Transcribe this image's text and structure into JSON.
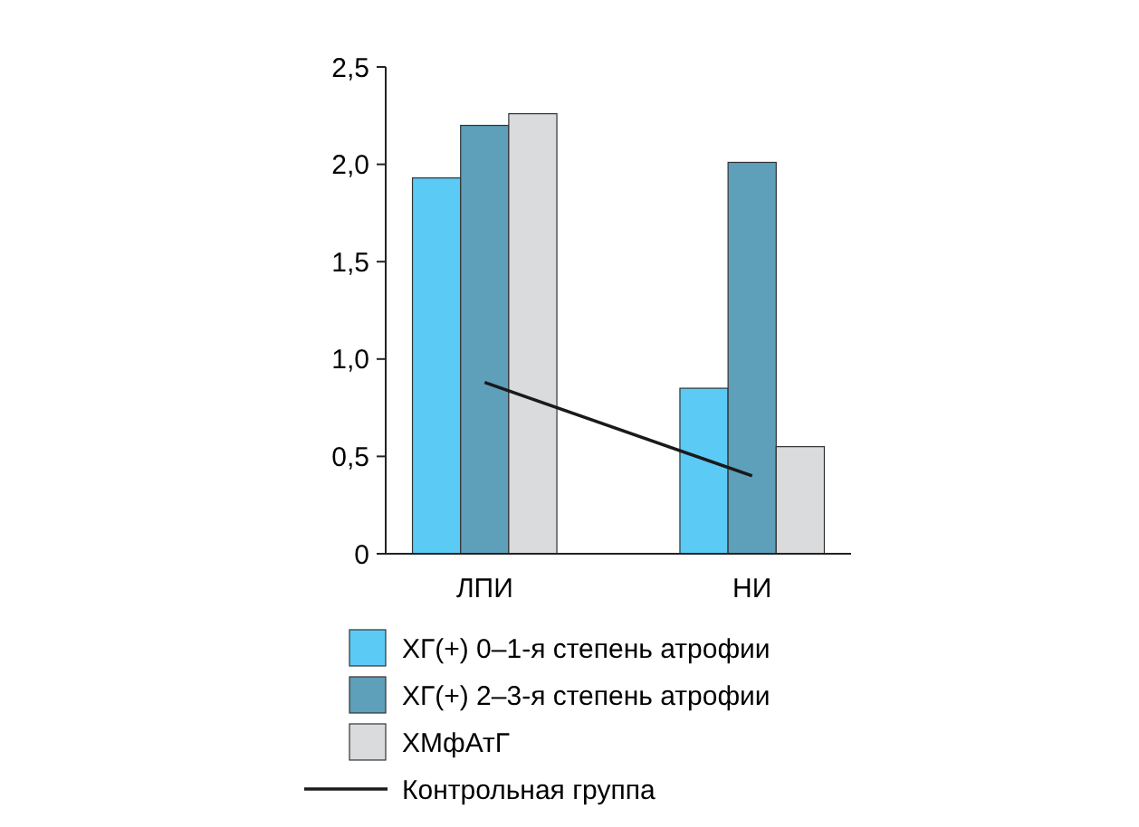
{
  "chart_data": {
    "type": "bar",
    "categories": [
      "ЛПИ",
      "НИ"
    ],
    "series": [
      {
        "name": "ХГ(+) 0–1-я степень атрофии",
        "color": "#5bcbf5",
        "values": [
          1.93,
          0.85
        ]
      },
      {
        "name": "ХГ(+) 2–3-я степень атрофии",
        "color": "#5e9fba",
        "values": [
          2.2,
          2.01
        ]
      },
      {
        "name": "ХМфАтГ",
        "color": "#d9dbdc",
        "values": [
          2.26,
          0.55
        ]
      },
      {
        "name": "Контрольная группа",
        "type": "line",
        "color": "#1a1a1a",
        "values": [
          0.88,
          0.4
        ]
      }
    ],
    "ylim": [
      0,
      2.5
    ],
    "yticks": [
      {
        "value": 0,
        "label": "0"
      },
      {
        "value": 0.5,
        "label": "0,5"
      },
      {
        "value": 1,
        "label": "1,0"
      },
      {
        "value": 1.5,
        "label": "1,5"
      },
      {
        "value": 2,
        "label": "2,0"
      },
      {
        "value": 2.5,
        "label": "2,5"
      }
    ],
    "grid": false,
    "legend": "bottom",
    "marker": "none",
    "line_style": "solid"
  }
}
